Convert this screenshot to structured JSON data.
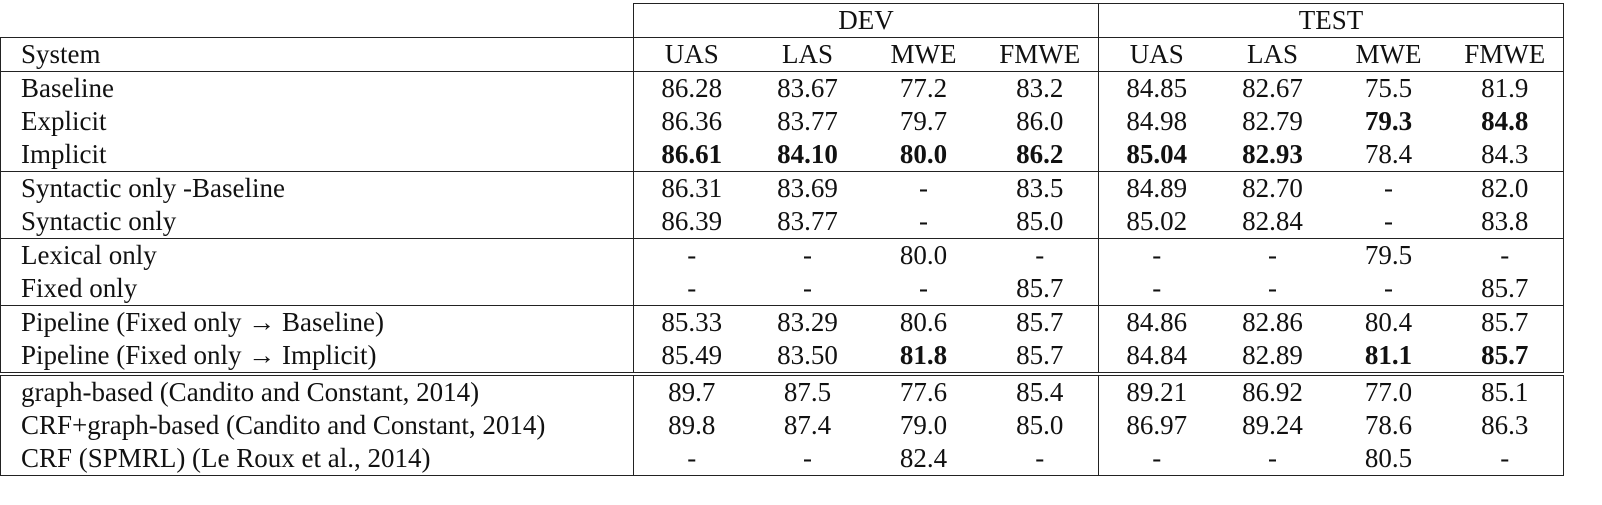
{
  "table": {
    "header": {
      "groups": [
        "DEV",
        "TEST"
      ],
      "columns": [
        "System",
        "UAS",
        "LAS",
        "MWE",
        "FMWE",
        "UAS",
        "LAS",
        "MWE",
        "FMWE"
      ]
    },
    "sections": [
      {
        "rule": "single",
        "rows": [
          {
            "cells": [
              "Baseline",
              "86.28",
              "83.67",
              "77.2",
              "83.2",
              "84.85",
              "82.67",
              "75.5",
              "81.9"
            ],
            "bold": []
          },
          {
            "cells": [
              "Explicit",
              "86.36",
              "83.77",
              "79.7",
              "86.0",
              "84.98",
              "82.79",
              "79.3",
              "84.8"
            ],
            "bold": [
              7,
              8
            ]
          },
          {
            "cells": [
              "Implicit",
              "86.61",
              "84.10",
              "80.0",
              "86.2",
              "85.04",
              "82.93",
              "78.4",
              "84.3"
            ],
            "bold": [
              1,
              2,
              3,
              4,
              5,
              6
            ]
          }
        ]
      },
      {
        "rule": "single",
        "rows": [
          {
            "cells": [
              "Syntactic only -Baseline",
              "86.31",
              "83.69",
              "-",
              "83.5",
              "84.89",
              "82.70",
              "-",
              "82.0"
            ],
            "bold": []
          },
          {
            "cells": [
              "Syntactic only",
              "86.39",
              "83.77",
              "-",
              "85.0",
              "85.02",
              "82.84",
              "-",
              "83.8"
            ],
            "bold": []
          }
        ]
      },
      {
        "rule": "single",
        "rows": [
          {
            "cells": [
              "Lexical only",
              "-",
              "-",
              "80.0",
              "-",
              "-",
              "-",
              "79.5",
              "-"
            ],
            "bold": []
          },
          {
            "cells": [
              "Fixed only",
              "-",
              "-",
              "-",
              "85.7",
              "-",
              "-",
              "-",
              "85.7"
            ],
            "bold": []
          }
        ]
      },
      {
        "rule": "single",
        "rows": [
          {
            "cells": [
              "Pipeline (Fixed only → Baseline)",
              "85.33",
              "83.29",
              "80.6",
              "85.7",
              "84.86",
              "82.86",
              "80.4",
              "85.7"
            ],
            "bold": []
          },
          {
            "cells": [
              "Pipeline (Fixed only → Implicit)",
              "85.49",
              "83.50",
              "81.8",
              "85.7",
              "84.84",
              "82.89",
              "81.1",
              "85.7"
            ],
            "bold": [
              3,
              7,
              8
            ]
          }
        ]
      },
      {
        "rule": "double",
        "rows": [
          {
            "cells": [
              "graph-based (Candito and Constant, 2014)",
              "89.7",
              "87.5",
              "77.6",
              "85.4",
              "89.21",
              "86.92",
              "77.0",
              "85.1"
            ],
            "bold": []
          },
          {
            "cells": [
              "CRF+graph-based (Candito and Constant, 2014)",
              "89.8",
              "87.4",
              "79.0",
              "85.0",
              "86.97",
              "89.24",
              "78.6",
              "86.3"
            ],
            "bold": []
          },
          {
            "cells": [
              "CRF (SPMRL) (Le Roux et al., 2014)",
              "-",
              "-",
              "82.4",
              "-",
              "-",
              "-",
              "80.5",
              "-"
            ],
            "bold": []
          }
        ]
      }
    ]
  }
}
